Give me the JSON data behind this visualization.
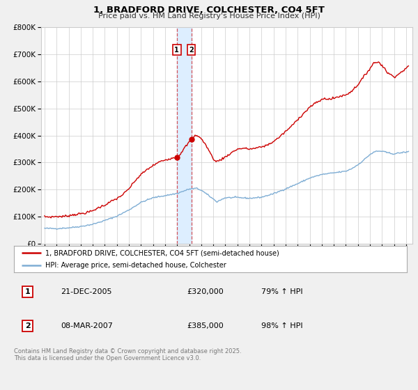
{
  "title": "1, BRADFORD DRIVE, COLCHESTER, CO4 5FT",
  "subtitle": "Price paid vs. HM Land Registry's House Price Index (HPI)",
  "legend_line1": "1, BRADFORD DRIVE, COLCHESTER, CO4 5FT (semi-detached house)",
  "legend_line2": "HPI: Average price, semi-detached house, Colchester",
  "footnote": "Contains HM Land Registry data © Crown copyright and database right 2025.\nThis data is licensed under the Open Government Licence v3.0.",
  "sale1_label": "1",
  "sale1_date": "21-DEC-2005",
  "sale1_price": "£320,000",
  "sale1_hpi": "79% ↑ HPI",
  "sale2_label": "2",
  "sale2_date": "08-MAR-2007",
  "sale2_price": "£385,000",
  "sale2_hpi": "98% ↑ HPI",
  "sale1_x": 2005.97,
  "sale1_y": 320000,
  "sale2_x": 2007.18,
  "sale2_y": 385000,
  "shade_x1": 2005.97,
  "shade_x2": 2007.18,
  "vline1_x": 2005.97,
  "vline2_x": 2007.18,
  "red_color": "#cc0000",
  "blue_color": "#7eadd4",
  "shade_color": "#ddeeff",
  "background_color": "#f0f0f0",
  "plot_bg_color": "#ffffff",
  "grid_color": "#cccccc",
  "ylim_min": 0,
  "ylim_max": 800000,
  "yticks": [
    0,
    100000,
    200000,
    300000,
    400000,
    500000,
    600000,
    700000,
    800000
  ],
  "ytick_labels": [
    "£0",
    "£100K",
    "£200K",
    "£300K",
    "£400K",
    "£500K",
    "£600K",
    "£700K",
    "£800K"
  ],
  "xlim_min": 1994.7,
  "xlim_max": 2025.5
}
